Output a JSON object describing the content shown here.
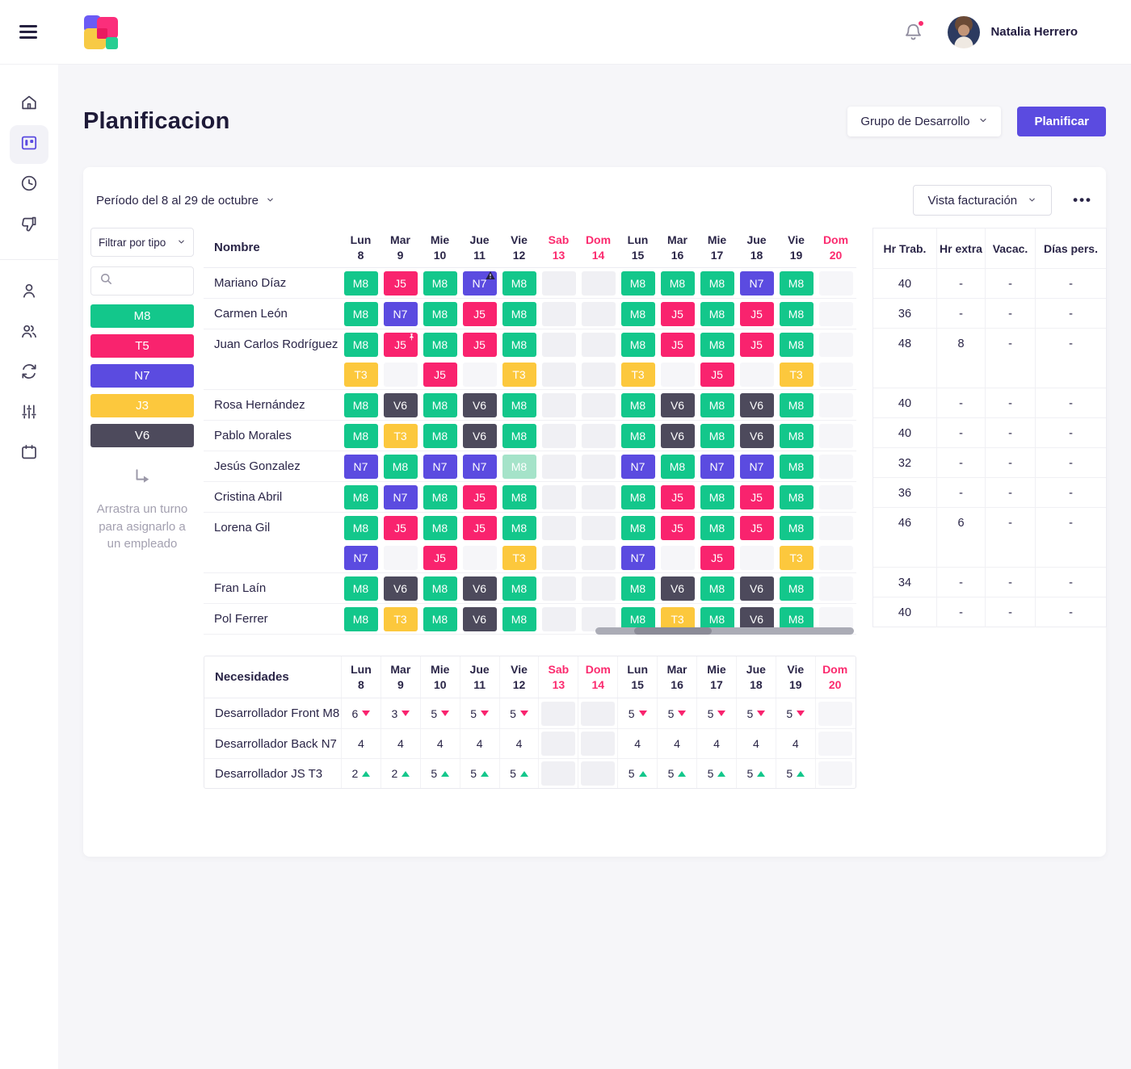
{
  "topbar": {
    "user_name": "Natalia Herrero"
  },
  "header": {
    "title": "Planificacion",
    "group_selector": "Grupo de Desarrollo",
    "plan_button": "Planificar"
  },
  "toolbar": {
    "period": "Período del 8 al 29 de octubre",
    "billing_view": "Vista facturación",
    "more_menu": "•••"
  },
  "filter": {
    "type_label": "Filtrar por tipo",
    "search_placeholder": "",
    "chips": [
      {
        "code": "M8",
        "color": "#13c78b"
      },
      {
        "code": "T5",
        "color": "#f9236e"
      },
      {
        "code": "N7",
        "color": "#5b4be0"
      },
      {
        "code": "J3",
        "color": "#fcc83d"
      },
      {
        "code": "V6",
        "color": "#4d4a5c"
      }
    ],
    "drag_hint": "Arrastra un turno para asignarlo a un empleado"
  },
  "schedule": {
    "name_header": "Nombre",
    "days": [
      {
        "label": "Lun",
        "num": "8"
      },
      {
        "label": "Mar",
        "num": "9"
      },
      {
        "label": "Mie",
        "num": "10"
      },
      {
        "label": "Jue",
        "num": "11"
      },
      {
        "label": "Vie",
        "num": "12"
      },
      {
        "label": "Sab",
        "num": "13",
        "weekend": true
      },
      {
        "label": "Dom",
        "num": "14",
        "weekend": true
      },
      {
        "label": "Lun",
        "num": "15"
      },
      {
        "label": "Mar",
        "num": "16"
      },
      {
        "label": "Mie",
        "num": "17"
      },
      {
        "label": "Jue",
        "num": "18"
      },
      {
        "label": "Vie",
        "num": "19"
      },
      {
        "label": "Dom",
        "num": "20",
        "weekend": true,
        "light": true
      }
    ],
    "shift_colors": {
      "M8": "#13c78b",
      "J5": "#f9236e",
      "N7": "#5b4be0",
      "T3": "#fcc83d",
      "V6": "#4d4a5c",
      "M8_faded": "#a5e3c9"
    },
    "rows": [
      {
        "name": "Mariano Díaz",
        "summary": [
          "40",
          "-",
          "-",
          "-"
        ],
        "lines": [
          [
            {
              "c": "M8"
            },
            {
              "c": "J5"
            },
            {
              "c": "M8"
            },
            {
              "c": "N7",
              "badge": "warning"
            },
            {
              "c": "M8"
            },
            null,
            null,
            {
              "c": "M8"
            },
            {
              "c": "M8"
            },
            {
              "c": "M8"
            },
            {
              "c": "N7"
            },
            {
              "c": "M8"
            },
            null
          ]
        ]
      },
      {
        "name": "Carmen León",
        "summary": [
          "36",
          "-",
          "-",
          "-"
        ],
        "lines": [
          [
            {
              "c": "M8"
            },
            {
              "c": "N7"
            },
            {
              "c": "M8"
            },
            {
              "c": "J5"
            },
            {
              "c": "M8"
            },
            null,
            null,
            {
              "c": "M8"
            },
            {
              "c": "J5"
            },
            {
              "c": "M8"
            },
            {
              "c": "J5"
            },
            {
              "c": "M8"
            },
            null
          ]
        ]
      },
      {
        "name": "Juan Carlos Rodríguez",
        "summary": [
          "48",
          "8",
          "-",
          "-"
        ],
        "lines": [
          [
            {
              "c": "M8"
            },
            {
              "c": "J5",
              "badge": "pin"
            },
            {
              "c": "M8"
            },
            {
              "c": "J5"
            },
            {
              "c": "M8"
            },
            null,
            null,
            {
              "c": "M8"
            },
            {
              "c": "J5"
            },
            {
              "c": "M8"
            },
            {
              "c": "J5"
            },
            {
              "c": "M8"
            },
            null
          ],
          [
            {
              "c": "T3"
            },
            null,
            {
              "c": "J5"
            },
            null,
            {
              "c": "T3"
            },
            null,
            null,
            {
              "c": "T3"
            },
            null,
            {
              "c": "J5"
            },
            null,
            {
              "c": "T3"
            },
            null
          ]
        ]
      },
      {
        "name": "Rosa Hernández",
        "summary": [
          "40",
          "-",
          "-",
          "-"
        ],
        "lines": [
          [
            {
              "c": "M8"
            },
            {
              "c": "V6"
            },
            {
              "c": "M8"
            },
            {
              "c": "V6"
            },
            {
              "c": "M8"
            },
            null,
            null,
            {
              "c": "M8"
            },
            {
              "c": "V6"
            },
            {
              "c": "M8"
            },
            {
              "c": "V6"
            },
            {
              "c": "M8"
            },
            null
          ]
        ]
      },
      {
        "name": "Pablo Morales",
        "summary": [
          "40",
          "-",
          "-",
          "-"
        ],
        "lines": [
          [
            {
              "c": "M8"
            },
            {
              "c": "T3"
            },
            {
              "c": "M8"
            },
            {
              "c": "V6"
            },
            {
              "c": "M8"
            },
            null,
            null,
            {
              "c": "M8"
            },
            {
              "c": "V6"
            },
            {
              "c": "M8"
            },
            {
              "c": "V6"
            },
            {
              "c": "M8"
            },
            null
          ]
        ]
      },
      {
        "name": "Jesús Gonzalez",
        "summary": [
          "32",
          "-",
          "-",
          "-"
        ],
        "lines": [
          [
            {
              "c": "N7"
            },
            {
              "c": "M8"
            },
            {
              "c": "N7"
            },
            {
              "c": "N7"
            },
            {
              "c": "M8",
              "faded": true
            },
            null,
            null,
            {
              "c": "N7"
            },
            {
              "c": "M8"
            },
            {
              "c": "N7"
            },
            {
              "c": "N7"
            },
            {
              "c": "M8"
            },
            null
          ]
        ]
      },
      {
        "name": "Cristina Abril",
        "summary": [
          "36",
          "-",
          "-",
          "-"
        ],
        "lines": [
          [
            {
              "c": "M8"
            },
            {
              "c": "N7"
            },
            {
              "c": "M8"
            },
            {
              "c": "J5"
            },
            {
              "c": "M8"
            },
            null,
            null,
            {
              "c": "M8"
            },
            {
              "c": "J5"
            },
            {
              "c": "M8"
            },
            {
              "c": "J5"
            },
            {
              "c": "M8"
            },
            null
          ]
        ]
      },
      {
        "name": "Lorena Gil",
        "summary": [
          "46",
          "6",
          "-",
          "-"
        ],
        "lines": [
          [
            {
              "c": "M8"
            },
            {
              "c": "J5"
            },
            {
              "c": "M8"
            },
            {
              "c": "J5"
            },
            {
              "c": "M8"
            },
            null,
            null,
            {
              "c": "M8"
            },
            {
              "c": "J5"
            },
            {
              "c": "M8"
            },
            {
              "c": "J5"
            },
            {
              "c": "M8"
            },
            null
          ],
          [
            {
              "c": "N7"
            },
            null,
            {
              "c": "J5"
            },
            null,
            {
              "c": "T3"
            },
            null,
            null,
            {
              "c": "N7"
            },
            null,
            {
              "c": "J5"
            },
            null,
            {
              "c": "T3"
            },
            null
          ]
        ]
      },
      {
        "name": "Fran Laín",
        "summary": [
          "34",
          "-",
          "-",
          "-"
        ],
        "lines": [
          [
            {
              "c": "M8"
            },
            {
              "c": "V6"
            },
            {
              "c": "M8"
            },
            {
              "c": "V6"
            },
            {
              "c": "M8"
            },
            null,
            null,
            {
              "c": "M8"
            },
            {
              "c": "V6"
            },
            {
              "c": "M8"
            },
            {
              "c": "V6"
            },
            {
              "c": "M8"
            },
            null
          ]
        ]
      },
      {
        "name": "Pol Ferrer",
        "summary": [
          "40",
          "-",
          "-",
          "-"
        ],
        "lines": [
          [
            {
              "c": "M8"
            },
            {
              "c": "T3"
            },
            {
              "c": "M8"
            },
            {
              "c": "V6"
            },
            {
              "c": "M8"
            },
            null,
            null,
            {
              "c": "M8"
            },
            {
              "c": "T3"
            },
            {
              "c": "M8"
            },
            {
              "c": "V6"
            },
            {
              "c": "M8"
            },
            null
          ]
        ]
      }
    ]
  },
  "summary": {
    "headers": [
      "Hr Trab.",
      "Hr extra",
      "Vacac.",
      "Días pers."
    ]
  },
  "needs": {
    "title": "Necesidades",
    "arrow_colors": {
      "down": "#f9236e",
      "up": "#13c78b"
    },
    "rows": [
      {
        "label": "Desarrollador Front M8",
        "cells": [
          {
            "v": "6",
            "d": "down"
          },
          {
            "v": "3",
            "d": "down"
          },
          {
            "v": "5",
            "d": "down"
          },
          {
            "v": "5",
            "d": "down"
          },
          {
            "v": "5",
            "d": "down"
          },
          null,
          null,
          {
            "v": "5",
            "d": "down"
          },
          {
            "v": "5",
            "d": "down"
          },
          {
            "v": "5",
            "d": "down"
          },
          {
            "v": "5",
            "d": "down"
          },
          {
            "v": "5",
            "d": "down"
          },
          null
        ]
      },
      {
        "label": "Desarrollador Back N7",
        "cells": [
          {
            "v": "4"
          },
          {
            "v": "4"
          },
          {
            "v": "4"
          },
          {
            "v": "4"
          },
          {
            "v": "4"
          },
          null,
          null,
          {
            "v": "4"
          },
          {
            "v": "4"
          },
          {
            "v": "4"
          },
          {
            "v": "4"
          },
          {
            "v": "4"
          },
          null
        ]
      },
      {
        "label": "Desarrollador JS T3",
        "cells": [
          {
            "v": "2",
            "d": "up"
          },
          {
            "v": "2",
            "d": "up"
          },
          {
            "v": "5",
            "d": "up"
          },
          {
            "v": "5",
            "d": "up"
          },
          {
            "v": "5",
            "d": "up"
          },
          null,
          null,
          {
            "v": "5",
            "d": "up"
          },
          {
            "v": "5",
            "d": "up"
          },
          {
            "v": "5",
            "d": "up"
          },
          {
            "v": "5",
            "d": "up"
          },
          {
            "v": "5",
            "d": "up"
          },
          null
        ]
      }
    ]
  }
}
